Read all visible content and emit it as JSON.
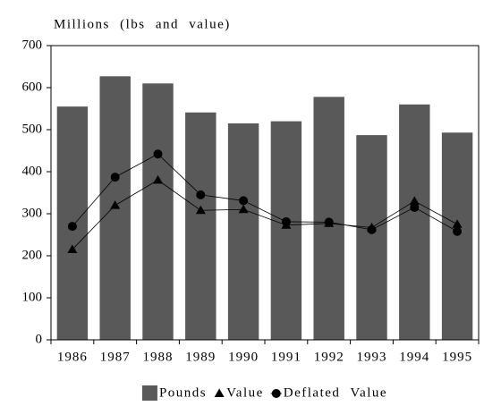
{
  "chart_data": {
    "type": "bar",
    "title": "Millions (lbs and value)",
    "categories": [
      "1986",
      "1987",
      "1988",
      "1989",
      "1990",
      "1991",
      "1992",
      "1993",
      "1994",
      "1995"
    ],
    "series": [
      {
        "name": "Pounds",
        "mark": "bar",
        "color": "#595959",
        "values": [
          555,
          627,
          610,
          541,
          515,
          520,
          578,
          487,
          560,
          493
        ]
      },
      {
        "name": "Value",
        "mark": "line",
        "marker": "triangle",
        "color": "#000000",
        "values": [
          215,
          320,
          380,
          308,
          310,
          273,
          277,
          267,
          330,
          275
        ]
      },
      {
        "name": "Deflated Value",
        "mark": "line",
        "marker": "circle",
        "color": "#000000",
        "values": [
          270,
          387,
          442,
          345,
          331,
          281,
          280,
          262,
          315,
          258
        ]
      }
    ],
    "ylim": [
      0,
      700
    ],
    "yticks": [
      0,
      100,
      200,
      300,
      400,
      500,
      600,
      700
    ],
    "legend": "bottom"
  }
}
